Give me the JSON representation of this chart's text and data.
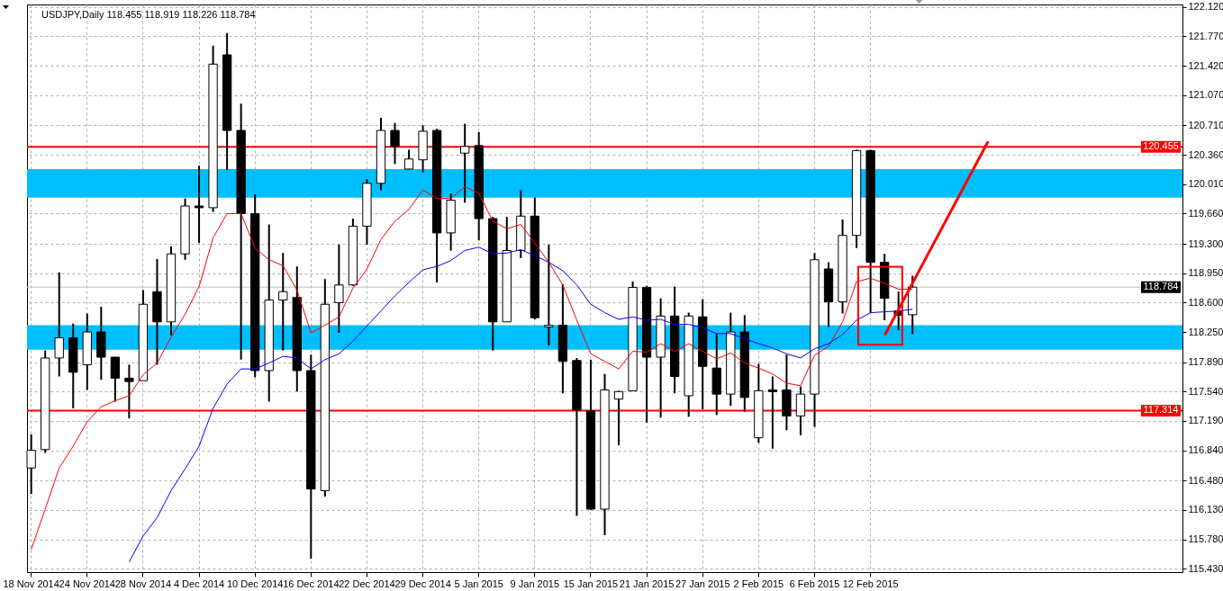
{
  "chart_data": {
    "type": "candlestick",
    "title": "USDJPY,Daily  118.455 118.919 118.226 118.784",
    "categories": [
      "18 Nov 2014",
      null,
      null,
      null,
      "24 Nov 2014",
      null,
      null,
      null,
      "28 Nov 2014",
      null,
      null,
      null,
      "4 Dec 2014",
      null,
      null,
      null,
      "10 Dec 2014",
      null,
      null,
      null,
      "16 Dec 2014",
      null,
      null,
      null,
      "22 Dec 2014",
      null,
      null,
      null,
      "29 Dec 2014",
      null,
      null,
      null,
      "5 Jan 2015",
      null,
      null,
      null,
      "9 Jan 2015",
      null,
      null,
      null,
      "15 Jan 2015",
      null,
      null,
      null,
      "21 Jan 2015",
      null,
      null,
      null,
      "27 Jan 2015",
      null,
      null,
      null,
      "2 Feb 2015",
      null,
      null,
      null,
      "6 Feb 2015",
      null,
      null,
      null,
      "12 Feb 2015",
      null,
      null,
      null,
      null,
      null,
      null,
      null,
      null,
      null,
      null,
      null,
      null,
      null,
      null,
      null,
      null,
      null,
      null,
      null,
      null,
      null,
      null
    ],
    "ohlc": [
      [
        116.63,
        117.03,
        116.32,
        116.84
      ],
      [
        116.85,
        118.03,
        116.81,
        117.94
      ],
      [
        117.94,
        118.96,
        117.72,
        118.18
      ],
      [
        118.18,
        118.35,
        117.34,
        117.77
      ],
      [
        117.86,
        118.47,
        117.56,
        118.25
      ],
      [
        118.25,
        118.55,
        117.68,
        117.95
      ],
      [
        117.95,
        117.95,
        117.42,
        117.7
      ],
      [
        117.7,
        117.86,
        117.22,
        117.66
      ],
      [
        117.67,
        118.75,
        117.67,
        118.58
      ],
      [
        118.73,
        119.12,
        117.86,
        118.37
      ],
      [
        118.37,
        119.27,
        118.21,
        119.18
      ],
      [
        119.18,
        119.84,
        119.11,
        119.75
      ],
      [
        119.75,
        120.23,
        119.31,
        119.73
      ],
      [
        119.73,
        121.66,
        119.68,
        121.44
      ],
      [
        121.55,
        121.81,
        120.18,
        120.65
      ],
      [
        120.65,
        120.97,
        117.92,
        119.66
      ],
      [
        119.66,
        119.89,
        117.71,
        117.79
      ],
      [
        117.79,
        119.53,
        117.42,
        118.63
      ],
      [
        118.63,
        119.19,
        118.03,
        118.73
      ],
      [
        118.66,
        119.03,
        117.54,
        117.79
      ],
      [
        117.79,
        117.98,
        115.55,
        116.38
      ],
      [
        116.36,
        118.88,
        116.29,
        118.58
      ],
      [
        118.6,
        119.29,
        118.24,
        118.81
      ],
      [
        118.81,
        119.6,
        118.8,
        119.51
      ],
      [
        119.51,
        120.07,
        119.29,
        120.02
      ],
      [
        120.02,
        120.8,
        119.94,
        120.65
      ],
      [
        120.65,
        120.74,
        120.25,
        120.46
      ],
      [
        120.19,
        120.42,
        120.19,
        120.31
      ],
      [
        120.3,
        120.71,
        120.15,
        120.64
      ],
      [
        120.65,
        120.67,
        118.84,
        119.43
      ],
      [
        119.43,
        119.9,
        119.22,
        119.82
      ],
      [
        120.38,
        120.73,
        119.79,
        120.46
      ],
      [
        120.47,
        120.63,
        119.34,
        119.6
      ],
      [
        119.6,
        119.62,
        118.03,
        118.37
      ],
      [
        118.37,
        119.62,
        118.37,
        119.22
      ],
      [
        119.22,
        119.94,
        119.13,
        119.63
      ],
      [
        119.63,
        119.85,
        118.4,
        118.42
      ],
      [
        118.31,
        119.29,
        118.09,
        118.33
      ],
      [
        118.33,
        118.82,
        117.52,
        117.9
      ],
      [
        117.91,
        117.94,
        116.06,
        117.32
      ],
      [
        117.31,
        117.92,
        116.13,
        116.14
      ],
      [
        116.14,
        117.75,
        115.83,
        117.56
      ],
      [
        117.45,
        117.55,
        116.9,
        117.54
      ],
      [
        117.55,
        118.85,
        117.55,
        118.78
      ],
      [
        118.78,
        118.8,
        117.17,
        117.95
      ],
      [
        117.95,
        118.65,
        117.23,
        118.44
      ],
      [
        118.44,
        118.79,
        117.52,
        117.72
      ],
      [
        117.49,
        118.48,
        117.24,
        118.44
      ],
      [
        118.43,
        118.64,
        117.33,
        117.84
      ],
      [
        117.82,
        118.23,
        117.26,
        117.51
      ],
      [
        117.51,
        118.48,
        117.37,
        118.25
      ],
      [
        118.25,
        118.45,
        117.3,
        117.47
      ],
      [
        116.99,
        117.87,
        116.93,
        117.55
      ],
      [
        117.56,
        117.72,
        116.86,
        117.54
      ],
      [
        117.56,
        117.98,
        117.08,
        117.25
      ],
      [
        117.25,
        117.6,
        117.02,
        117.51
      ],
      [
        117.51,
        119.19,
        117.12,
        119.11
      ],
      [
        119.0,
        119.08,
        118.31,
        118.61
      ],
      [
        118.61,
        119.59,
        118.47,
        119.4
      ],
      [
        119.4,
        120.42,
        119.25,
        120.41
      ],
      [
        120.41,
        120.42,
        118.48,
        119.08
      ],
      [
        119.08,
        119.18,
        118.39,
        118.65
      ],
      [
        118.5,
        118.73,
        118.27,
        118.45
      ],
      [
        118.455,
        118.919,
        118.226,
        118.784
      ],
      null,
      null,
      null,
      null,
      null,
      null,
      null,
      null,
      null,
      null,
      null,
      null,
      null,
      null,
      null,
      null,
      null,
      null,
      null
    ],
    "colors": [
      "#ffffff",
      "#ffffff",
      "#ffffff",
      "#000000",
      "#ffffff",
      "#000000",
      "#000000",
      "#000000",
      "#ffffff",
      "#000000",
      "#ffffff",
      "#ffffff",
      "#000000",
      "#ffffff",
      "#000000",
      "#000000",
      "#000000",
      "#ffffff",
      "#ffffff",
      "#000000",
      "#000000",
      "#ffffff",
      "#ffffff",
      "#ffffff",
      "#ffffff",
      "#ffffff",
      "#000000",
      "#ffffff",
      "#ffffff",
      "#000000",
      "#ffffff",
      "#ffffff",
      "#000000",
      "#000000",
      "#ffffff",
      "#ffffff",
      "#000000",
      "#ffffff",
      "#000000",
      "#000000",
      "#000000",
      "#ffffff",
      "#ffffff",
      "#ffffff",
      "#000000",
      "#ffffff",
      "#000000",
      "#ffffff",
      "#000000",
      "#000000",
      "#ffffff",
      "#000000",
      "#ffffff",
      "#000000",
      "#000000",
      "#ffffff",
      "#ffffff",
      "#000000",
      "#ffffff",
      "#ffffff",
      "#000000",
      "#000000",
      "#000000",
      "#ffffff",
      null,
      null,
      null,
      null,
      null,
      null,
      null,
      null,
      null,
      null,
      null,
      null,
      null,
      null,
      null,
      null,
      null,
      null,
      null
    ],
    "series": [
      {
        "type": "line",
        "color": "#ff0000",
        "values": [
          115.66,
          116.14,
          116.63,
          116.89,
          117.18,
          117.36,
          117.43,
          117.49,
          117.74,
          117.88,
          118.19,
          118.46,
          118.79,
          119.37,
          119.66,
          119.66,
          119.25,
          119.11,
          119.04,
          118.75,
          118.24,
          118.33,
          118.43,
          118.77,
          119.0,
          119.35,
          119.57,
          119.71,
          119.94,
          119.84,
          119.84,
          119.98,
          119.9,
          119.57,
          119.48,
          119.53,
          119.31,
          119.08,
          118.81,
          118.39,
          117.99,
          117.9,
          117.81,
          118.02,
          118.01,
          118.11,
          118.02,
          118.11,
          118.02,
          117.93,
          118.0,
          117.88,
          117.82,
          117.75,
          117.64,
          117.61,
          117.97,
          118.08,
          118.37,
          118.85,
          118.89,
          118.83,
          118.76,
          118.76,
          null,
          null,
          null,
          null,
          null,
          null,
          null,
          null,
          null,
          null,
          null,
          null,
          null,
          null,
          null,
          null,
          null,
          null,
          null
        ]
      },
      {
        "type": "line",
        "color": "#0000ff",
        "values": [
          null,
          null,
          null,
          null,
          null,
          null,
          null,
          115.51,
          115.82,
          116.04,
          116.36,
          116.62,
          116.89,
          117.34,
          117.63,
          117.81,
          117.81,
          117.88,
          117.96,
          117.94,
          117.81,
          117.92,
          117.99,
          118.14,
          118.32,
          118.5,
          118.68,
          118.84,
          118.99,
          119.03,
          119.1,
          119.22,
          119.26,
          119.18,
          119.19,
          119.23,
          119.16,
          119.08,
          118.98,
          118.81,
          118.58,
          118.48,
          118.4,
          118.43,
          118.39,
          118.4,
          118.34,
          118.34,
          118.3,
          118.23,
          118.23,
          118.17,
          118.11,
          118.06,
          117.99,
          117.94,
          118.05,
          118.11,
          118.22,
          118.39,
          118.48,
          118.49,
          118.5,
          118.52,
          null,
          null,
          null,
          null,
          null,
          null,
          null,
          null,
          null,
          null,
          null,
          null,
          null,
          null,
          null,
          null,
          null,
          null,
          null
        ]
      }
    ],
    "ylim": [
      115.39,
      122.15
    ],
    "yticks": [
      {
        "value": 122.12,
        "label": "122.120"
      },
      {
        "value": 121.77,
        "label": "121.770"
      },
      {
        "value": 121.42,
        "label": "121.420"
      },
      {
        "value": 121.07,
        "label": "121.070"
      },
      {
        "value": 120.71,
        "label": "120.710"
      },
      {
        "value": 120.36,
        "label": "120.360"
      },
      {
        "value": 120.01,
        "label": "120.010"
      },
      {
        "value": 119.66,
        "label": "119.660"
      },
      {
        "value": 119.3,
        "label": "119.300"
      },
      {
        "value": 118.95,
        "label": "118.950"
      },
      {
        "value": 118.6,
        "label": "118.600"
      },
      {
        "value": 118.25,
        "label": "118.250"
      },
      {
        "value": 117.89,
        "label": "117.890"
      },
      {
        "value": 117.54,
        "label": "117.540"
      },
      {
        "value": 117.19,
        "label": "117.190"
      },
      {
        "value": 116.84,
        "label": "116.840"
      },
      {
        "value": 116.48,
        "label": "116.480"
      },
      {
        "value": 116.13,
        "label": "116.130"
      },
      {
        "value": 115.78,
        "label": "115.780"
      },
      {
        "value": 115.43,
        "label": "115.430"
      }
    ],
    "grid": true,
    "ref_lines": [
      {
        "axis": "y",
        "value": 120.455,
        "label": "120.455",
        "color": "#ff0000"
      },
      {
        "axis": "y",
        "value": 117.314,
        "label": "117.314",
        "color": "#ff0000"
      },
      {
        "axis": "y",
        "value": 118.784,
        "label": "118.784",
        "color": "#c0c0c0"
      }
    ],
    "bands": [
      {
        "axis": "y",
        "from": 119.85,
        "to": 120.19,
        "color": "#00bfff"
      },
      {
        "axis": "y",
        "from": 118.04,
        "to": 118.33,
        "color": "#00bfff"
      }
    ]
  }
}
